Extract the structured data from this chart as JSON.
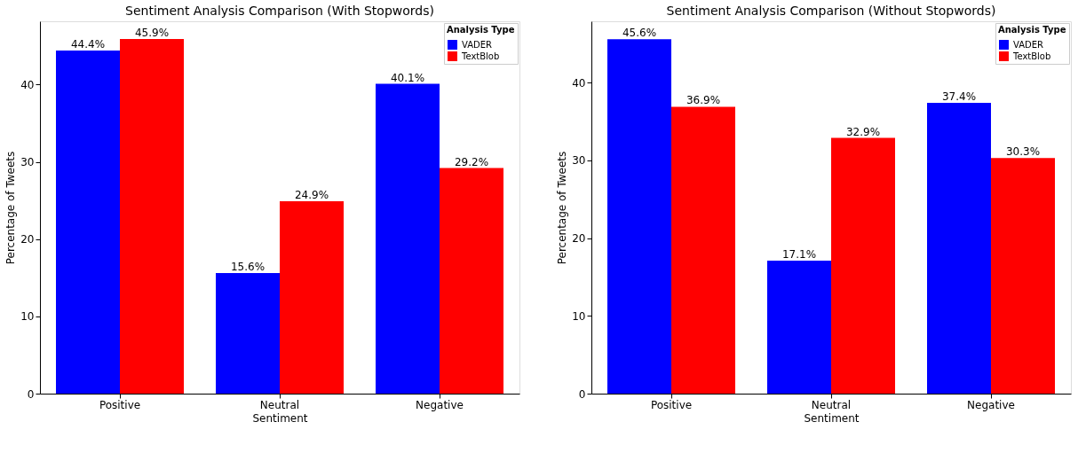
{
  "chart_data": [
    {
      "type": "bar",
      "title": "Sentiment Analysis Comparison (With Stopwords)",
      "xlabel": "Sentiment",
      "ylabel": "Percentage of Tweets",
      "legend_title": "Analysis Type",
      "legend": "top right",
      "grid": false,
      "categories": [
        "Positive",
        "Neutral",
        "Negative"
      ],
      "ylim": [
        0,
        48.2
      ],
      "yticks": [
        0,
        10,
        20,
        30,
        40
      ],
      "series": [
        {
          "name": "VADER",
          "color": "#0000ff",
          "values": [
            44.4,
            15.6,
            40.1
          ],
          "value_labels": [
            "44.4%",
            "15.6%",
            "40.1%"
          ]
        },
        {
          "name": "TextBlob",
          "color": "#ff0000",
          "values": [
            45.9,
            24.9,
            29.2
          ],
          "value_labels": [
            "45.9%",
            "24.9%",
            "29.2%"
          ]
        }
      ]
    },
    {
      "type": "bar",
      "title": "Sentiment Analysis Comparison (Without Stopwords)",
      "xlabel": "Sentiment",
      "ylabel": "Percentage of Tweets",
      "legend_title": "Analysis Type",
      "legend": "top right",
      "grid": false,
      "categories": [
        "Positive",
        "Neutral",
        "Negative"
      ],
      "ylim": [
        0,
        47.9
      ],
      "yticks": [
        0,
        10,
        20,
        30,
        40
      ],
      "series": [
        {
          "name": "VADER",
          "color": "#0000ff",
          "values": [
            45.6,
            17.1,
            37.4
          ],
          "value_labels": [
            "45.6%",
            "17.1%",
            "37.4%"
          ]
        },
        {
          "name": "TextBlob",
          "color": "#ff0000",
          "values": [
            36.9,
            32.9,
            30.3
          ],
          "value_labels": [
            "36.9%",
            "32.9%",
            "30.3%"
          ]
        }
      ]
    }
  ]
}
